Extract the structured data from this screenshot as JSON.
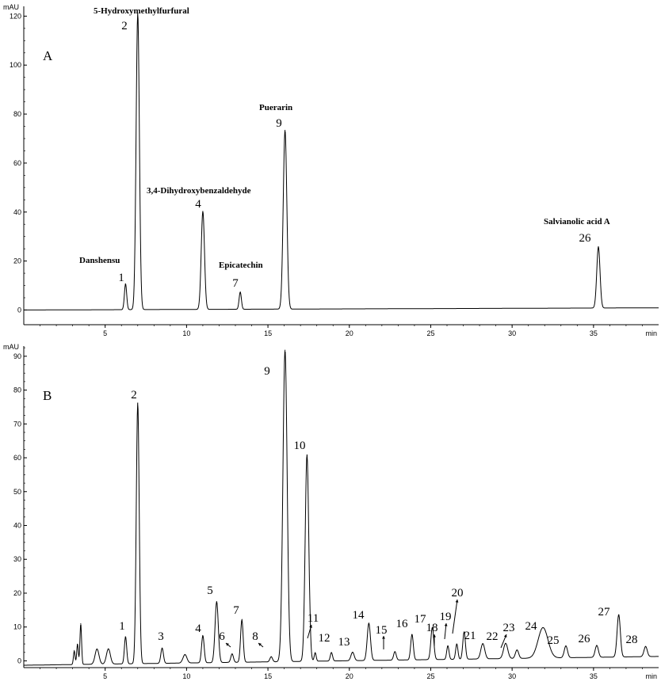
{
  "chart_data": [
    {
      "type": "line",
      "panel_label": "A",
      "y_unit": "mAU",
      "x_unit": "min",
      "xlim": [
        0,
        39
      ],
      "ylim": [
        -6,
        124
      ],
      "x_ticks": [
        5,
        10,
        15,
        20,
        25,
        30,
        35
      ],
      "y_ticks": [
        0,
        20,
        40,
        60,
        80,
        100,
        120
      ],
      "baseline": {
        "start": 0.0,
        "end": 0.9
      },
      "peaks": [
        {
          "label": "1",
          "compound": "Danshensu",
          "x": 6.25,
          "y": 10.5,
          "w": 0.07
        },
        {
          "label": "2",
          "compound": "5-Hydroxymethylfurfural",
          "x": 7.0,
          "y": 121,
          "w": 0.1
        },
        {
          "label": "4",
          "compound": "3,4-Dihydroxybenzaldehyde",
          "x": 11.0,
          "y": 40,
          "w": 0.1
        },
        {
          "label": "7",
          "compound": "Epicatechin",
          "x": 13.3,
          "y": 7,
          "w": 0.07
        },
        {
          "label": "9",
          "compound": "Puerarin",
          "x": 16.05,
          "y": 73,
          "w": 0.11
        },
        {
          "label": "26",
          "compound": "Salvianolic acid A",
          "x": 35.3,
          "y": 25,
          "w": 0.1
        }
      ]
    },
    {
      "type": "line",
      "panel_label": "B",
      "y_unit": "mAU",
      "x_unit": "min",
      "xlim": [
        0,
        39
      ],
      "ylim": [
        -2,
        93
      ],
      "x_ticks": [
        5,
        10,
        15,
        20,
        25,
        30,
        35
      ],
      "y_ticks": [
        0,
        10,
        20,
        30,
        40,
        50,
        60,
        70,
        80,
        90
      ],
      "baseline": {
        "start": -1.3,
        "end": 1.3
      },
      "peaks": [
        {
          "label": "",
          "x": 3.1,
          "y": 4,
          "w": 0.05
        },
        {
          "label": "",
          "x": 3.3,
          "y": 6,
          "w": 0.05
        },
        {
          "label": "",
          "x": 3.5,
          "y": 12,
          "w": 0.05
        },
        {
          "label": "",
          "x": 4.5,
          "y": 4.5,
          "w": 0.12
        },
        {
          "label": "",
          "x": 5.2,
          "y": 4.5,
          "w": 0.12
        },
        {
          "label": "1",
          "x": 6.25,
          "y": 8,
          "w": 0.07
        },
        {
          "label": "2",
          "x": 7.0,
          "y": 77,
          "w": 0.09
        },
        {
          "label": "3",
          "x": 8.5,
          "y": 4.5,
          "w": 0.08
        },
        {
          "label": "",
          "x": 9.9,
          "y": 2.5,
          "w": 0.12
        },
        {
          "label": "4",
          "x": 11.0,
          "y": 8,
          "w": 0.08
        },
        {
          "label": "5",
          "x": 11.85,
          "y": 18,
          "w": 0.1
        },
        {
          "label": "6",
          "x": 12.8,
          "y": 2.5,
          "w": 0.08
        },
        {
          "label": "7",
          "x": 13.4,
          "y": 12.5,
          "w": 0.08
        },
        {
          "label": "8",
          "x": 15.2,
          "y": 1.5,
          "w": 0.08
        },
        {
          "label": "9",
          "x": 16.05,
          "y": 92,
          "w": 0.13
        },
        {
          "label": "10",
          "x": 17.4,
          "y": 61,
          "w": 0.11
        },
        {
          "label": "11",
          "x": 17.9,
          "y": 2.5,
          "w": 0.06
        },
        {
          "label": "12",
          "x": 18.9,
          "y": 2.5,
          "w": 0.07
        },
        {
          "label": "13",
          "x": 20.2,
          "y": 2.5,
          "w": 0.1
        },
        {
          "label": "14",
          "x": 21.2,
          "y": 11,
          "w": 0.1
        },
        {
          "label": "15",
          "x": 22.8,
          "y": 2.5,
          "w": 0.08
        },
        {
          "label": "16",
          "x": 23.85,
          "y": 7.5,
          "w": 0.08
        },
        {
          "label": "17",
          "x": 25.1,
          "y": 9.5,
          "w": 0.09
        },
        {
          "label": "18",
          "x": 26.05,
          "y": 4,
          "w": 0.07
        },
        {
          "label": "19",
          "x": 26.6,
          "y": 4.5,
          "w": 0.07
        },
        {
          "label": "20",
          "x": 27.05,
          "y": 8,
          "w": 0.08
        },
        {
          "label": "21",
          "x": 28.2,
          "y": 4.5,
          "w": 0.12
        },
        {
          "label": "22",
          "x": 29.6,
          "y": 4.5,
          "w": 0.13
        },
        {
          "label": "23",
          "x": 30.3,
          "y": 2.5,
          "w": 0.1
        },
        {
          "label": "24",
          "x": 31.9,
          "y": 9,
          "w": 0.3
        },
        {
          "label": "25",
          "x": 33.3,
          "y": 3.5,
          "w": 0.1
        },
        {
          "label": "26",
          "x": 35.2,
          "y": 3.5,
          "w": 0.1
        },
        {
          "label": "27",
          "x": 36.55,
          "y": 12.5,
          "w": 0.1
        },
        {
          "label": "28",
          "x": 38.2,
          "y": 3,
          "w": 0.1
        }
      ]
    }
  ]
}
